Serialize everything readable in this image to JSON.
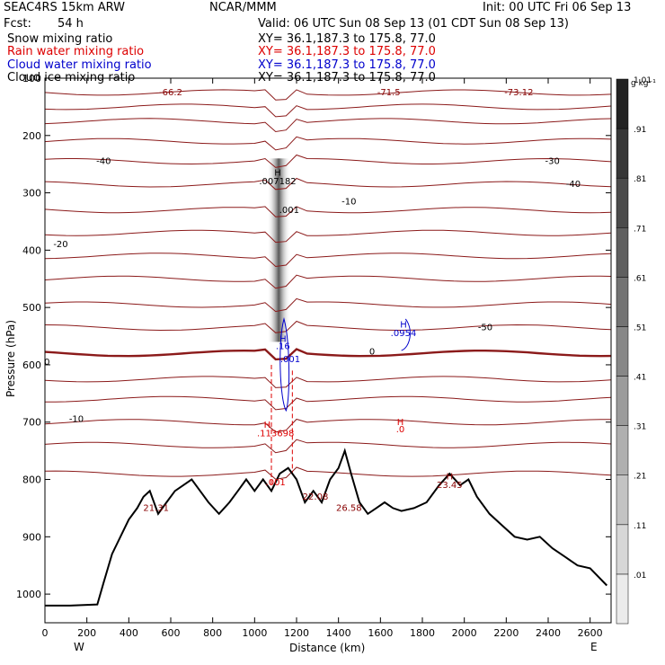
{
  "header": {
    "model": "SEAC4RS 15km ARW",
    "center": "NCAR/MMM",
    "init": "Init: 00 UTC Fri 06 Sep 13",
    "fcst_label": "Fcst:",
    "fcst_value": "54 h",
    "valid": "Valid: 06 UTC Sun 08 Sep 13 (01 CDT Sun 08 Sep 13)"
  },
  "fields": [
    {
      "name": "Snow mixing ratio",
      "color": "#000000",
      "xy": "XY=  36.1,187.3 to 175.8, 77.0"
    },
    {
      "name": "Rain water mixing ratio",
      "color": "#dd0000",
      "xy": "XY=  36.1,187.3 to 175.8, 77.0"
    },
    {
      "name": "Cloud water mixing ratio",
      "color": "#0000cc",
      "xy": "XY=  36.1,187.3 to 175.8, 77.0"
    },
    {
      "name": "Cloud ice mixing ratio",
      "color": "#000000",
      "xy": "XY=  36.1,187.3 to 175.8, 77.0"
    }
  ],
  "chart_data": {
    "type": "contour cross-section",
    "xlabel": "Distance (km)",
    "ylabel": "Pressure (hPa)",
    "xlim": [
      0,
      2700
    ],
    "ylim": [
      1050,
      100
    ],
    "x_ticks": [
      0,
      200,
      400,
      600,
      800,
      1000,
      1200,
      1400,
      1600,
      1800,
      2000,
      2200,
      2400,
      2600
    ],
    "y_ticks": [
      1000,
      900,
      800,
      700,
      600,
      500,
      400,
      300,
      200,
      100
    ],
    "x_end_labels": {
      "left": "W",
      "right": "E"
    },
    "colorbar": {
      "unit": "g kg⁻¹",
      "levels": [
        ".01",
        ".11",
        ".21",
        ".31",
        ".41",
        ".51",
        ".61",
        ".71",
        ".81",
        ".91",
        "1.01"
      ]
    },
    "temperature_contour_labels": [
      {
        "x": 280,
        "p": 250,
        "text": "-40"
      },
      {
        "x": 75,
        "p": 395,
        "text": "-20"
      },
      {
        "x": 10,
        "p": 600,
        "text": "0"
      },
      {
        "x": 150,
        "p": 700,
        "text": "-10"
      },
      {
        "x": 2100,
        "p": 540,
        "text": "-50"
      },
      {
        "x": 2420,
        "p": 250,
        "text": "-30"
      },
      {
        "x": 2520,
        "p": 290,
        "text": "-40"
      },
      {
        "x": 1450,
        "p": 320,
        "text": "-10"
      },
      {
        "x": 1560,
        "p": 582,
        "text": "0"
      }
    ],
    "extrema_labels": [
      {
        "text": "H",
        "x": 1110,
        "p": 270,
        "color": "#000000"
      },
      {
        "text": ".007182",
        "x": 1110,
        "p": 285,
        "color": "#000000"
      },
      {
        "text": ".001",
        "x": 1165,
        "p": 335,
        "color": "#000000"
      },
      {
        "text": "H",
        "x": 1710,
        "p": 535,
        "color": "#0000cc"
      },
      {
        "text": ".0954",
        "x": 1710,
        "p": 550,
        "color": "#0000cc"
      },
      {
        "text": "H",
        "x": 1135,
        "p": 560,
        "color": "#0000cc"
      },
      {
        "text": ".16",
        "x": 1135,
        "p": 573,
        "color": "#0000cc"
      },
      {
        "text": ".001",
        "x": 1170,
        "p": 595,
        "color": "#0000cc"
      },
      {
        "text": "H",
        "x": 1060,
        "p": 710,
        "color": "#dd0000"
      },
      {
        "text": ".113698",
        "x": 1100,
        "p": 725,
        "color": "#dd0000"
      },
      {
        "text": ".001",
        "x": 1100,
        "p": 810,
        "color": "#dd0000"
      },
      {
        "text": "H",
        "x": 1695,
        "p": 705,
        "color": "#dd0000"
      },
      {
        "text": ".0",
        "x": 1695,
        "p": 718,
        "color": "#dd0000"
      },
      {
        "text": "21.31",
        "x": 530,
        "p": 855,
        "color": "#880000"
      },
      {
        "text": "22.08",
        "x": 1290,
        "p": 835,
        "color": "#880000"
      },
      {
        "text": "26.58",
        "x": 1450,
        "p": 855,
        "color": "#880000"
      },
      {
        "text": "H",
        "x": 1930,
        "p": 800,
        "color": "#880000"
      },
      {
        "text": "23.45",
        "x": 1930,
        "p": 815,
        "color": "#880000"
      },
      {
        "text": "-71.5",
        "x": 1640,
        "p": 130,
        "color": "#880000"
      },
      {
        "text": "-73.12",
        "x": 2260,
        "p": 130,
        "color": "#880000"
      },
      {
        "text": "-66.2",
        "x": 600,
        "p": 130,
        "color": "#880000"
      }
    ],
    "terrain": [
      [
        0,
        1020
      ],
      [
        120,
        1020
      ],
      [
        250,
        1018
      ],
      [
        280,
        980
      ],
      [
        320,
        930
      ],
      [
        360,
        900
      ],
      [
        400,
        870
      ],
      [
        440,
        850
      ],
      [
        470,
        830
      ],
      [
        500,
        820
      ],
      [
        540,
        860
      ],
      [
        580,
        840
      ],
      [
        620,
        820
      ],
      [
        660,
        810
      ],
      [
        700,
        800
      ],
      [
        740,
        820
      ],
      [
        780,
        840
      ],
      [
        830,
        860
      ],
      [
        880,
        840
      ],
      [
        920,
        820
      ],
      [
        960,
        800
      ],
      [
        1000,
        820
      ],
      [
        1040,
        800
      ],
      [
        1080,
        820
      ],
      [
        1120,
        790
      ],
      [
        1160,
        780
      ],
      [
        1200,
        800
      ],
      [
        1240,
        840
      ],
      [
        1280,
        820
      ],
      [
        1320,
        840
      ],
      [
        1360,
        800
      ],
      [
        1400,
        780
      ],
      [
        1430,
        750
      ],
      [
        1460,
        790
      ],
      [
        1500,
        840
      ],
      [
        1540,
        860
      ],
      [
        1580,
        850
      ],
      [
        1620,
        840
      ],
      [
        1660,
        850
      ],
      [
        1700,
        855
      ],
      [
        1760,
        850
      ],
      [
        1820,
        840
      ],
      [
        1880,
        810
      ],
      [
        1930,
        790
      ],
      [
        1980,
        810
      ],
      [
        2020,
        800
      ],
      [
        2060,
        830
      ],
      [
        2120,
        860
      ],
      [
        2180,
        880
      ],
      [
        2240,
        900
      ],
      [
        2300,
        905
      ],
      [
        2360,
        900
      ],
      [
        2420,
        920
      ],
      [
        2480,
        935
      ],
      [
        2540,
        950
      ],
      [
        2600,
        955
      ],
      [
        2680,
        985
      ]
    ]
  }
}
